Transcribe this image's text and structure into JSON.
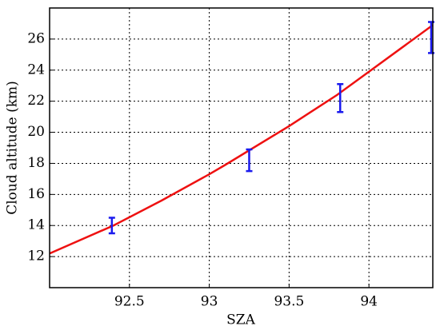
{
  "chart_data": {
    "type": "line",
    "xlabel": "SZA",
    "ylabel": "Cloud altitude (km)",
    "xlim": [
      92,
      94.4
    ],
    "xticks": [
      92.5,
      93,
      93.5,
      94
    ],
    "ylim": [
      10,
      28
    ],
    "yticks": [
      12,
      14,
      16,
      18,
      20,
      22,
      24,
      26
    ],
    "grid": true,
    "series": [
      {
        "type": "line",
        "color": "#ee1111",
        "x": [
          92,
          92.4,
          92.7,
          93,
          93.1,
          93.5,
          93.8,
          94,
          94.2,
          94.4
        ],
        "values": [
          12.2,
          14.0,
          15.6,
          17.3,
          17.9,
          20.4,
          22.4,
          23.9,
          25.4,
          26.9
        ]
      },
      {
        "type": "errorbar",
        "color": "#1a1aee",
        "x": [
          92.39,
          93.25,
          93.82,
          94.39
        ],
        "values": [
          14.0,
          18.2,
          22.2,
          26.1
        ],
        "errors": [
          0.5,
          0.7,
          0.9,
          1.0
        ]
      }
    ]
  }
}
